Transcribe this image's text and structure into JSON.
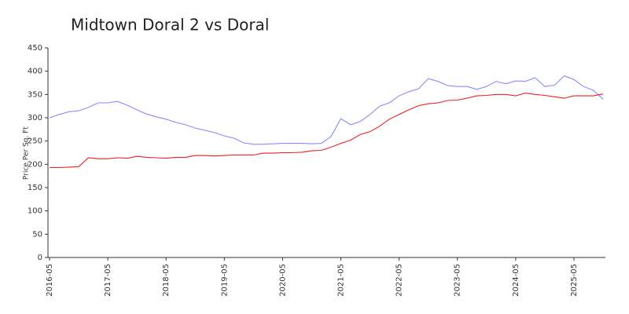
{
  "chart_data": {
    "type": "line",
    "title": "Midtown Doral 2 vs Doral",
    "y_label": "Price Per Sq. Ft",
    "x": [
      "2016-05",
      "2016-07",
      "2016-09",
      "2016-11",
      "2017-01",
      "2017-03",
      "2017-05",
      "2017-07",
      "2017-09",
      "2017-11",
      "2018-01",
      "2018-03",
      "2018-05",
      "2018-07",
      "2018-09",
      "2018-11",
      "2019-01",
      "2019-03",
      "2019-05",
      "2019-07",
      "2019-09",
      "2019-11",
      "2020-01",
      "2020-03",
      "2020-05",
      "2020-07",
      "2020-09",
      "2020-11",
      "2021-01",
      "2021-03",
      "2021-05",
      "2021-07",
      "2021-09",
      "2021-11",
      "2022-01",
      "2022-03",
      "2022-05",
      "2022-07",
      "2022-09",
      "2022-11",
      "2023-01",
      "2023-03",
      "2023-05",
      "2023-07",
      "2023-09",
      "2023-11",
      "2024-01",
      "2024-03",
      "2024-05",
      "2024-07",
      "2024-09",
      "2024-11",
      "2025-01",
      "2025-03",
      "2025-05",
      "2025-07",
      "2025-09",
      "2025-11"
    ],
    "series": [
      {
        "color": "#8a8aff",
        "values": [
          300,
          307,
          313,
          315,
          322,
          332,
          332,
          335,
          327,
          317,
          308,
          302,
          297,
          290,
          285,
          278,
          273,
          268,
          261,
          256,
          246,
          243,
          243,
          244,
          245,
          245,
          245,
          244,
          245,
          260,
          298,
          285,
          292,
          307,
          325,
          332,
          347,
          356,
          362,
          384,
          378,
          369,
          367,
          367,
          361,
          367,
          378,
          373,
          379,
          378,
          386,
          367,
          370,
          390,
          382,
          367,
          359,
          340
        ]
      },
      {
        "color": "#ee2020",
        "values": [
          193,
          193,
          194,
          195,
          214,
          212,
          212,
          214,
          213,
          217,
          215,
          214,
          213,
          215,
          215,
          219,
          219,
          218,
          219,
          220,
          220,
          220,
          224,
          224,
          225,
          225,
          226,
          229,
          230,
          237,
          245,
          252,
          264,
          270,
          282,
          297,
          307,
          317,
          326,
          330,
          332,
          337,
          338,
          342,
          347,
          348,
          350,
          350,
          347,
          353,
          350,
          348,
          345,
          342,
          347,
          347,
          347,
          351
        ]
      }
    ],
    "xlim": [
      "2016-05",
      "2025-11"
    ],
    "xticks": [
      "2016-05",
      "2017-05",
      "2018-05",
      "2019-05",
      "2020-05",
      "2021-05",
      "2022-05",
      "2023-05",
      "2024-05",
      "2025-05"
    ],
    "ylim": [
      0,
      450
    ],
    "yticks": [
      0,
      50,
      100,
      150,
      200,
      250,
      300,
      350,
      400,
      450
    ]
  }
}
